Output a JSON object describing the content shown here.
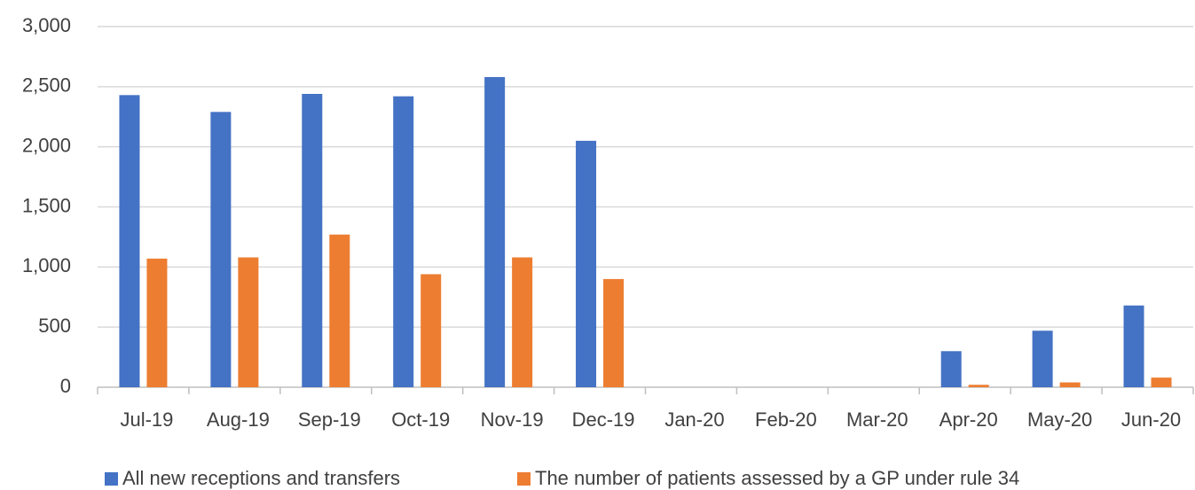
{
  "chart_data": {
    "type": "bar",
    "categories": [
      "Jul-19",
      "Aug-19",
      "Sep-19",
      "Oct-19",
      "Nov-19",
      "Dec-19",
      "Jan-20",
      "Feb-20",
      "Mar-20",
      "Apr-20",
      "May-20",
      "Jun-20"
    ],
    "series": [
      {
        "name": "All new receptions and transfers",
        "color": "#4472c4",
        "values": [
          2430,
          2290,
          2440,
          2420,
          2580,
          2050,
          null,
          null,
          null,
          300,
          470,
          680
        ]
      },
      {
        "name": "The number of patients assessed by a GP under rule 34",
        "color": "#ed7d31",
        "values": [
          1070,
          1080,
          1270,
          940,
          1080,
          900,
          null,
          null,
          null,
          20,
          40,
          80
        ]
      }
    ],
    "ylim": [
      0,
      3000
    ],
    "yticks": [
      0,
      500,
      {
        "value": 1000,
        "label": "1,000"
      },
      {
        "value": 1500,
        "label": "1,500"
      },
      {
        "value": 2000,
        "label": "2,000"
      },
      {
        "value": 2500,
        "label": "2,500"
      },
      {
        "value": 3000,
        "label": "3,000"
      }
    ],
    "grid": true,
    "legend": "bottom"
  }
}
